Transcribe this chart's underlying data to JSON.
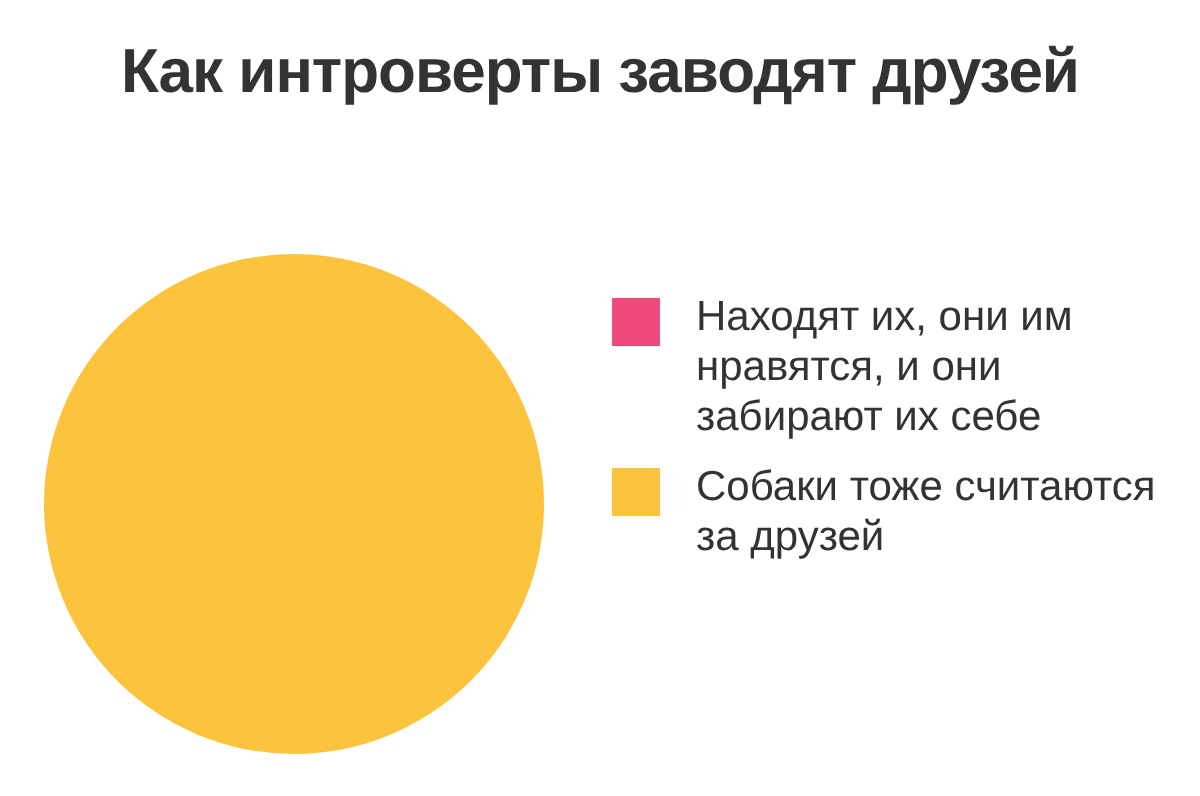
{
  "chart_data": {
    "type": "pie",
    "title": "Как интроверты заводят друзей",
    "categories": [
      "Находят их, они им нравятся, и они забирают их себе",
      "Собаки тоже считаются за друзей"
    ],
    "values": [
      0,
      100
    ],
    "colors": [
      "#ef4a7e",
      "#fbc43c"
    ],
    "legend": "right"
  }
}
